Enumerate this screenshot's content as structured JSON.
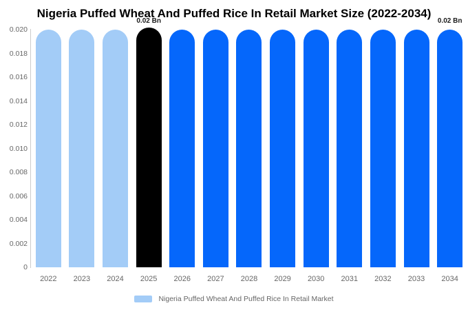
{
  "chart_data": {
    "type": "bar",
    "title": "Nigeria Puffed Wheat And Puffed Rice In Retail Market Size (2022-2034)",
    "categories": [
      "2022",
      "2023",
      "2024",
      "2025",
      "2026",
      "2027",
      "2028",
      "2029",
      "2030",
      "2031",
      "2032",
      "2033",
      "2034"
    ],
    "values": [
      0.02,
      0.02,
      0.02,
      0.02,
      0.02,
      0.02,
      0.02,
      0.02,
      0.02,
      0.02,
      0.02,
      0.02,
      0.02
    ],
    "unit": "Bn",
    "ylim": [
      0,
      0.02
    ],
    "y_ticks": [
      "0.020",
      "0.018",
      "0.016",
      "0.014",
      "0.012",
      "0.010",
      "0.008",
      "0.006",
      "0.004",
      "0.002",
      "0"
    ],
    "grid": false,
    "xlabel": "",
    "ylabel": "",
    "bar_colors": [
      "#a3ccf7",
      "#a3ccf7",
      "#a3ccf7",
      "#000000",
      "#0567fb",
      "#0567fb",
      "#0567fb",
      "#0567fb",
      "#0567fb",
      "#0567fb",
      "#0567fb",
      "#0567fb",
      "#0567fb"
    ],
    "highlight_index": 3,
    "annotations": [
      {
        "bar_index": 3,
        "text": "0.02 Bn"
      },
      {
        "bar_index": 12,
        "text": "0.02 Bn"
      }
    ],
    "legend": {
      "label": "Nigeria Puffed Wheat And Puffed Rice In Retail Market",
      "swatch_color": "#a3ccf7",
      "position": "bottom-center"
    },
    "colors": {
      "light_blue": "#a3ccf7",
      "blue": "#0567fb",
      "black": "#000000",
      "axis_label": "#666666",
      "axis_line": "#cccccc",
      "title": "#000000",
      "data_label": "#1a1a1a"
    }
  }
}
